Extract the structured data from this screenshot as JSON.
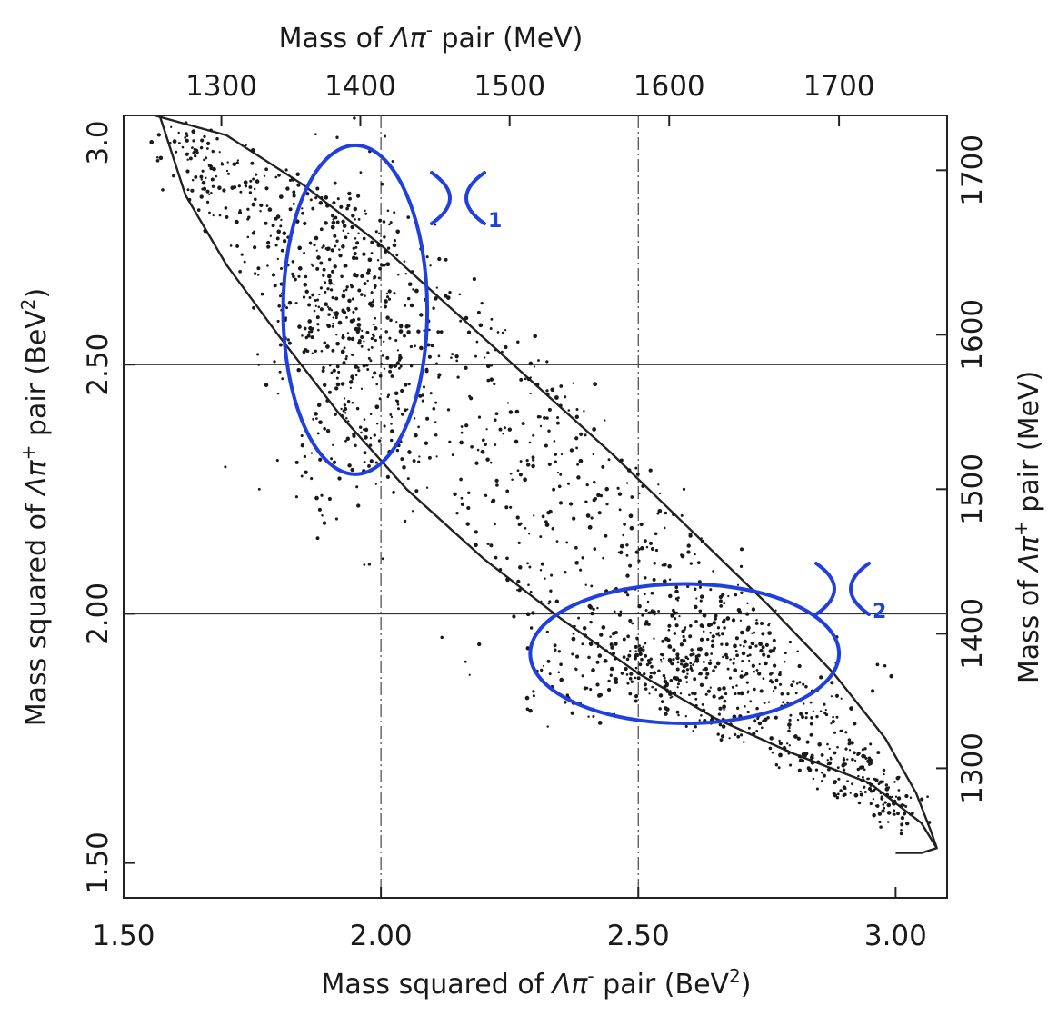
{
  "chart_data": {
    "type": "scatter",
    "title": "",
    "bottom_axis": {
      "label_prefix": "Mass squared of ",
      "label_symbol": "Λπ",
      "label_sup": "-",
      "label_suffix": " pair (BeV",
      "label_exp": "2",
      "label_close": ")",
      "range": [
        1.5,
        3.1
      ],
      "ticks": [
        "1.50",
        "2.00",
        "2.50",
        "3.00"
      ],
      "tick_values": [
        1.5,
        2.0,
        2.5,
        3.0
      ]
    },
    "left_axis": {
      "label_prefix": "Mass squared of ",
      "label_symbol": "Λπ",
      "label_sup": "+",
      "label_suffix": " pair (BeV",
      "label_exp": "2",
      "label_close": ")",
      "range": [
        1.43,
        3.0
      ],
      "ticks": [
        "1.50",
        "2.00",
        "2.50",
        "3.0"
      ],
      "tick_values": [
        1.5,
        2.0,
        2.5,
        3.0
      ]
    },
    "top_axis": {
      "label_prefix": "Mass of ",
      "label_symbol": "Λπ",
      "label_sup": "-",
      "label_suffix": " pair (MeV)",
      "ticks": [
        "1300",
        "1400",
        "1500",
        "1600",
        "1700"
      ],
      "tick_values": [
        1300,
        1400,
        1500,
        1600,
        1700
      ]
    },
    "right_axis": {
      "label_prefix": "Mass of ",
      "label_symbol": "Λπ",
      "label_sup": "+",
      "label_suffix": " pair (MeV)",
      "ticks": [
        "1300",
        "1400",
        "1500",
        "1600",
        "1700"
      ],
      "tick_values": [
        1300,
        1400,
        1500,
        1600,
        1700
      ]
    },
    "grid": "lines at 2.00 and 2.50 on both axes",
    "grid_values": [
      2.0,
      2.5
    ],
    "kinematic_boundary": {
      "outer": [
        [
          1.57,
          3.0
        ],
        [
          1.62,
          2.84
        ],
        [
          1.7,
          2.7
        ],
        [
          1.8,
          2.56
        ],
        [
          1.92,
          2.4
        ],
        [
          2.05,
          2.25
        ],
        [
          2.2,
          2.11
        ],
        [
          2.35,
          1.99
        ],
        [
          2.5,
          1.88
        ],
        [
          2.65,
          1.79
        ],
        [
          2.8,
          1.72
        ],
        [
          2.95,
          1.66
        ],
        [
          3.05,
          1.58
        ],
        [
          3.08,
          1.53
        ],
        [
          3.05,
          1.52
        ],
        [
          3.0,
          1.52
        ]
      ],
      "inner": [
        [
          1.56,
          3.0
        ],
        [
          1.7,
          2.96
        ],
        [
          1.85,
          2.86
        ],
        [
          2.0,
          2.74
        ],
        [
          2.15,
          2.6
        ],
        [
          2.3,
          2.46
        ],
        [
          2.45,
          2.32
        ],
        [
          2.6,
          2.17
        ],
        [
          2.75,
          2.02
        ],
        [
          2.88,
          1.88
        ],
        [
          2.98,
          1.75
        ],
        [
          3.04,
          1.64
        ],
        [
          3.07,
          1.56
        ],
        [
          3.08,
          1.53
        ]
      ]
    },
    "clusters": [
      {
        "name": "Y1",
        "center": [
          1.93,
          2.55
        ],
        "spread": [
          0.07,
          0.17
        ],
        "count": 320
      },
      {
        "name": "Y2",
        "center": [
          2.57,
          1.9
        ],
        "spread": [
          0.15,
          0.06
        ],
        "count": 330
      }
    ],
    "annotations": [
      {
        "symbol": "Y",
        "subscript": "1",
        "ellipse_center": [
          1.95,
          2.61
        ],
        "ellipse_radii": [
          0.14,
          0.33
        ]
      },
      {
        "symbol": "Y",
        "subscript": "2",
        "ellipse_center": [
          2.59,
          1.92
        ],
        "ellipse_radii": [
          0.3,
          0.14
        ]
      }
    ],
    "annotation_color": "#1f3fe0"
  }
}
